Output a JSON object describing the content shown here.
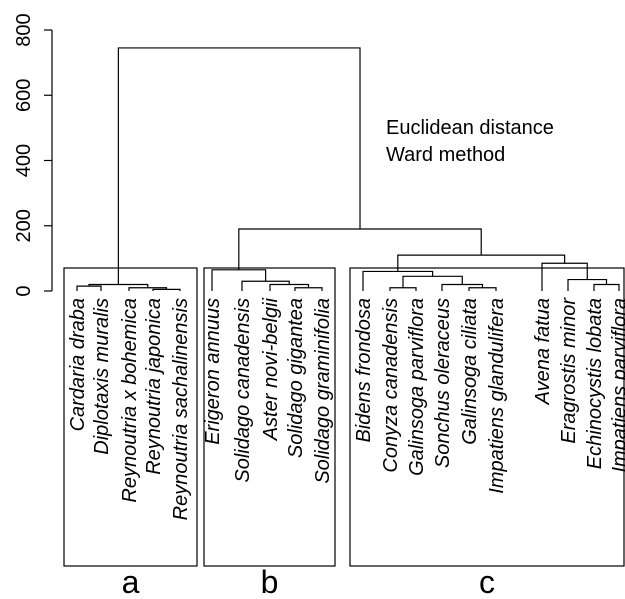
{
  "chart_data": {
    "type": "dendrogram",
    "yticks": [
      "0",
      "200",
      "400",
      "600",
      "800"
    ],
    "ylim": [
      0,
      800
    ],
    "annotation": [
      "Euclidean distance",
      "Ward method"
    ],
    "leaves": [
      "Cardaria draba",
      "Diplotaxis muralis",
      "Reynoutria x bohemica",
      "Reynoutria japonica",
      "Reynoutria sachalinensis",
      "Erigeron annuus",
      "Solidago canadensis",
      "Aster novi-belgii",
      "Solidago gigantea",
      "Solidago graminifolia",
      "Bidens frondosa",
      "Conyza canadensis",
      "Galinsoga parviflora",
      "Sonchus oleraceus",
      "Galinsoga ciliata",
      "Impatiens glandulifera",
      "Avena fatua",
      "Eragrostis minor",
      "Echinocystis lobata",
      "Impatiens parviflora"
    ],
    "merges": [
      {
        "a": "L3",
        "b": "L4",
        "height": 5
      },
      {
        "a": "L2",
        "b": "m0",
        "height": 10
      },
      {
        "a": "L0",
        "b": "L1",
        "height": 15
      },
      {
        "a": "m2",
        "b": "m1",
        "height": 20
      },
      {
        "a": "L9",
        "b": "L8",
        "height": 10
      },
      {
        "a": "m4",
        "b": "L7",
        "height": 20
      },
      {
        "a": "m5",
        "b": "L6",
        "height": 30
      },
      {
        "a": "L5",
        "b": "m6",
        "height": 65
      },
      {
        "a": "L14",
        "b": "L15",
        "height": 10
      },
      {
        "a": "L13",
        "b": "m8",
        "height": 20
      },
      {
        "a": "L11",
        "b": "L12",
        "height": 10
      },
      {
        "a": "m10",
        "b": "m9",
        "height": 45
      },
      {
        "a": "L10",
        "b": "m11",
        "height": 60
      },
      {
        "a": "L18",
        "b": "L19",
        "height": 20
      },
      {
        "a": "L17",
        "b": "m13",
        "height": 35
      },
      {
        "a": "L16",
        "b": "m14",
        "height": 85
      },
      {
        "a": "m12",
        "b": "m15",
        "height": 110
      },
      {
        "a": "m7",
        "b": "m16",
        "height": 190
      },
      {
        "a": "m3",
        "b": "m17",
        "height": 745
      }
    ],
    "groups": [
      {
        "label": "a",
        "leaves": [
          0,
          4
        ]
      },
      {
        "label": "b",
        "leaves": [
          5,
          9
        ]
      },
      {
        "label": "c",
        "leaves": [
          10,
          19
        ]
      }
    ]
  }
}
